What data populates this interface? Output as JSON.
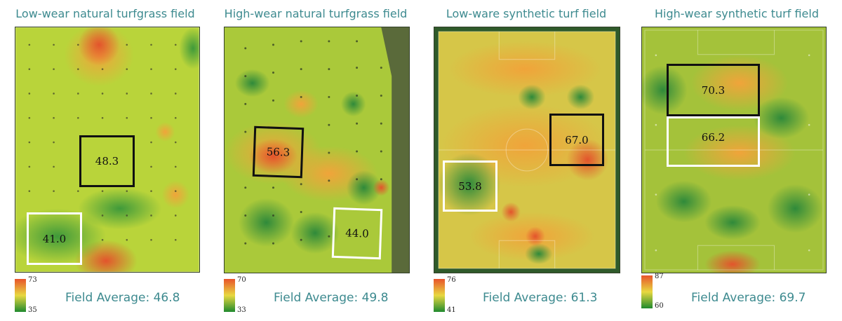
{
  "panels": [
    {
      "title": "Low-wear natural turfgrass field",
      "zone_dark": "48.3",
      "zone_light": "41.0",
      "scale_max": "73",
      "scale_min": "35",
      "average_label": "Field Average: 46.8"
    },
    {
      "title": "High-wear natural turfgrass field",
      "zone_dark": "56.3",
      "zone_light": "44.0",
      "scale_max": "70",
      "scale_min": "33",
      "average_label": "Field Average: 49.8"
    },
    {
      "title": "Low-ware synthetic turf field",
      "zone_dark": "67.0",
      "zone_light": "53.8",
      "scale_max": "76",
      "scale_min": "41",
      "average_label": "Field Average: 61.3"
    },
    {
      "title": "High-wear synthetic turf field",
      "zone_dark": "70.3",
      "zone_light": "66.2",
      "scale_max": "87",
      "scale_min": "60",
      "average_label": "Field Average: 69.7"
    }
  ],
  "colors": {
    "title_text": "#3d8a8f",
    "scale_high": "#e8532b",
    "scale_mid": "#e8d840",
    "scale_low": "#1f8a2e"
  }
}
